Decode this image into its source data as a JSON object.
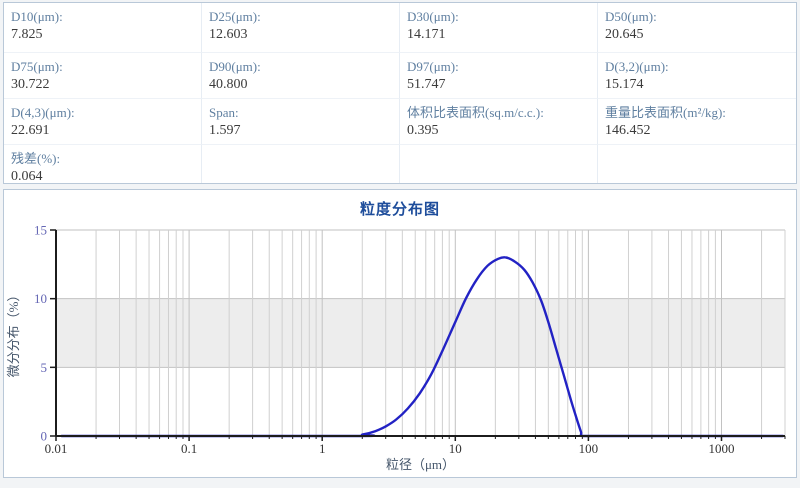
{
  "stats": {
    "items": [
      {
        "label": "D10(μm):",
        "value": "7.825"
      },
      {
        "label": "D25(μm):",
        "value": "12.603"
      },
      {
        "label": "D30(μm):",
        "value": "14.171"
      },
      {
        "label": "D50(μm):",
        "value": "20.645"
      },
      {
        "label": "D75(μm):",
        "value": "30.722"
      },
      {
        "label": "D90(μm):",
        "value": "40.800"
      },
      {
        "label": "D97(μm):",
        "value": "51.747"
      },
      {
        "label": "D(3,2)(μm):",
        "value": "15.174"
      },
      {
        "label": "D(4,3)(μm):",
        "value": "22.691"
      },
      {
        "label": "Span:",
        "value": "1.597"
      },
      {
        "label": "体积比表面积(sq.m/c.c.):",
        "value": "0.395"
      },
      {
        "label": "重量比表面积(m²/kg):",
        "value": "146.452"
      },
      {
        "label": "残差(%):",
        "value": "0.064"
      },
      {
        "label": "",
        "value": ""
      },
      {
        "label": "",
        "value": ""
      },
      {
        "label": "",
        "value": ""
      }
    ]
  },
  "chart_data": {
    "type": "line",
    "title": "粒度分布图",
    "xlabel": "粒径（μm）",
    "ylabel": "微分分布（%）",
    "x_scale": "log",
    "xlim": [
      0.01,
      3000
    ],
    "ylim": [
      0,
      15
    ],
    "yticks": [
      0,
      5,
      10,
      15
    ],
    "xticks": [
      0.01,
      0.1,
      1,
      10,
      100,
      1000
    ],
    "xtick_labels": [
      "0.01",
      "0.1",
      "1",
      "10",
      "100",
      "1000"
    ],
    "shaded_band_y": [
      5,
      10
    ],
    "grid": true,
    "legend_position": "none",
    "series": [
      {
        "name": "微分分布",
        "x": [
          0.011,
          1.6,
          2.0,
          2.5,
          3.0,
          3.6,
          4.4,
          5.4,
          6.6,
          8.0,
          10,
          12,
          14.5,
          17.5,
          21,
          24,
          28,
          33,
          38,
          44,
          50,
          57,
          65,
          74,
          82,
          88,
          91,
          130,
          2900
        ],
        "y": [
          0,
          0,
          0.1,
          0.35,
          0.7,
          1.2,
          2.0,
          3.1,
          4.5,
          6.2,
          8.3,
          10.0,
          11.4,
          12.4,
          12.9,
          13.0,
          12.7,
          12.1,
          11.2,
          9.9,
          8.3,
          6.4,
          4.5,
          2.6,
          1.2,
          0.3,
          0,
          0,
          0
        ]
      }
    ]
  },
  "colors": {
    "curve": "#2222c4",
    "grid_minor": "#d0d0d0",
    "grid_major": "#c2c2c2",
    "band": "#ededed",
    "axis": "#1c1c1c",
    "y_tick_label": "#6567b5",
    "x_tick_label": "#333333",
    "axis_title": "#44556a",
    "panel_border": "#b9c8d8",
    "stat_label": "#5f7fa0",
    "chart_title": "#1e4d9b"
  }
}
